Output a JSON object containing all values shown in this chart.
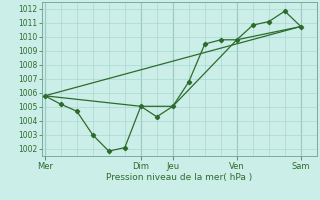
{
  "xlabel": "Pression niveau de la mer( hPa )",
  "ylim": [
    1001.5,
    1012.5
  ],
  "yticks": [
    1002,
    1003,
    1004,
    1005,
    1006,
    1007,
    1008,
    1009,
    1010,
    1011,
    1012
  ],
  "background_color": "#cceee8",
  "grid_color": "#aad8d2",
  "line_color": "#2d6b2d",
  "x_day_labels": [
    "Mer",
    "Dim",
    "Jeu",
    "Ven",
    "Sam"
  ],
  "x_day_positions": [
    0,
    9,
    12,
    18,
    24
  ],
  "xmin": -0.3,
  "xmax": 25.5,
  "line1_x": [
    0,
    1.5,
    3,
    4.5,
    6,
    7.5,
    9,
    10.5,
    12,
    13.5,
    15,
    16.5,
    18,
    19.5,
    21,
    22.5,
    24
  ],
  "line1_y": [
    1005.8,
    1005.2,
    1004.7,
    1003.0,
    1001.85,
    1002.1,
    1005.05,
    1004.3,
    1005.05,
    1006.8,
    1009.5,
    1009.8,
    1009.8,
    1010.85,
    1011.1,
    1011.85,
    1010.75
  ],
  "line2_x": [
    0,
    9,
    12,
    18,
    24
  ],
  "line2_y": [
    1005.8,
    1005.05,
    1005.05,
    1009.8,
    1010.75
  ],
  "line3_x": [
    0,
    24
  ],
  "line3_y": [
    1005.8,
    1010.75
  ]
}
